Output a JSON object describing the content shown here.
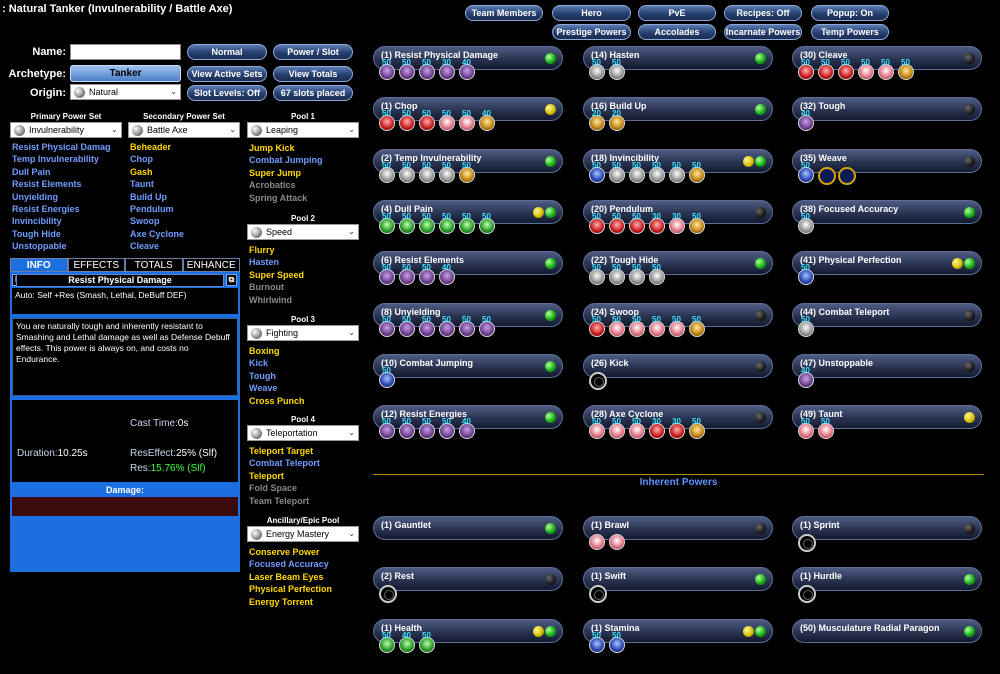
{
  "window_title": ": Natural Tanker (Invulnerability / Battle Axe)",
  "top_buttons": [
    "Team Members",
    "Hero",
    "PvE",
    "Recipes: Off",
    "Popup: On",
    "Prestige Powers",
    "Accolades",
    "Incarnate Powers",
    "Temp Powers"
  ],
  "form": {
    "name_label": "Name:",
    "name_value": "",
    "archetype_label": "Archetype:",
    "archetype_value": "Tanker",
    "origin_label": "Origin:",
    "origin_value": "Natural"
  },
  "side_buttons": [
    "Normal",
    "Power / Slot",
    "View Active Sets",
    "View Totals",
    "Slot Levels: Off",
    "67 slots placed"
  ],
  "powersets": {
    "primary": {
      "heading": "Primary Power Set",
      "selected": "Invulnerability",
      "powers": [
        {
          "n": "Resist  Physical Damag",
          "c": "blue"
        },
        {
          "n": "Temp Invulnerability",
          "c": "blue"
        },
        {
          "n": "Dull Pain",
          "c": "blue"
        },
        {
          "n": "Resist Elements",
          "c": "blue"
        },
        {
          "n": "Unyielding",
          "c": "blue"
        },
        {
          "n": "Resist Energies",
          "c": "blue"
        },
        {
          "n": "Invincibility",
          "c": "blue"
        },
        {
          "n": "Tough Hide",
          "c": "blue"
        },
        {
          "n": "Unstoppable",
          "c": "blue"
        }
      ]
    },
    "secondary": {
      "heading": "Secondary Power Set",
      "selected": "Battle Axe",
      "powers": [
        {
          "n": "Beheader",
          "c": "yel"
        },
        {
          "n": "Chop",
          "c": "blue"
        },
        {
          "n": "Gash",
          "c": "yel"
        },
        {
          "n": "Taunt",
          "c": "blue"
        },
        {
          "n": "Build Up",
          "c": "blue"
        },
        {
          "n": "Pendulum",
          "c": "blue"
        },
        {
          "n": "Swoop",
          "c": "blue"
        },
        {
          "n": "Axe Cyclone",
          "c": "blue"
        },
        {
          "n": "Cleave",
          "c": "blue"
        }
      ]
    }
  },
  "pools": [
    {
      "heading": "Pool 1",
      "selected": "Leaping",
      "powers": [
        {
          "n": "Jump Kick",
          "c": "yel"
        },
        {
          "n": "Combat Jumping",
          "c": "blue"
        },
        {
          "n": "Super Jump",
          "c": "yel"
        },
        {
          "n": "Acrobatics",
          "c": "gray"
        },
        {
          "n": "Spring Attack",
          "c": "gray"
        }
      ]
    },
    {
      "heading": "Pool 2",
      "selected": "Speed",
      "powers": [
        {
          "n": "Flurry",
          "c": "yel"
        },
        {
          "n": "Hasten",
          "c": "blue"
        },
        {
          "n": "Super Speed",
          "c": "yel"
        },
        {
          "n": "Burnout",
          "c": "gray"
        },
        {
          "n": "Whirlwind",
          "c": "gray"
        }
      ]
    },
    {
      "heading": "Pool 3",
      "selected": "Fighting",
      "powers": [
        {
          "n": "Boxing",
          "c": "yel"
        },
        {
          "n": "Kick",
          "c": "blue"
        },
        {
          "n": "Tough",
          "c": "blue"
        },
        {
          "n": "Weave",
          "c": "blue"
        },
        {
          "n": "Cross Punch",
          "c": "yel"
        }
      ]
    },
    {
      "heading": "Pool 4",
      "selected": "Teleportation",
      "powers": [
        {
          "n": "Teleport Target",
          "c": "yel"
        },
        {
          "n": "Combat Teleport",
          "c": "blue"
        },
        {
          "n": "Teleport",
          "c": "yel"
        },
        {
          "n": "Fold Space",
          "c": "gray"
        },
        {
          "n": "Team Teleport",
          "c": "gray"
        }
      ]
    },
    {
      "heading": "Ancillary/Epic Pool",
      "selected": "Energy Mastery",
      "powers": [
        {
          "n": "Conserve Power",
          "c": "yel"
        },
        {
          "n": "Focused Accuracy",
          "c": "blue"
        },
        {
          "n": "Laser Beam Eyes",
          "c": "yel"
        },
        {
          "n": "Physical Perfection",
          "c": "yel"
        },
        {
          "n": "Energy Torrent",
          "c": "yel"
        }
      ]
    }
  ],
  "info": {
    "tabs": [
      "INFO",
      "EFFECTS",
      "TOTALS",
      "ENHANCE"
    ],
    "f_btn": "F",
    "power_title": "Resist Physical Damage",
    "summary": "Auto: Self +Res (Smash, Lethal, DeBuff DEF)",
    "description": "You are naturally tough and inherently resistant to Smashing and Lethal damage as well as Defense Debuff effects. This power is always on, and costs no Endurance.",
    "cast_time_label": "Cast Time:",
    "cast_time": "0s",
    "duration_label": "Duration:",
    "duration": "10.25s",
    "reseffect_label": "ResEffect:",
    "reseffect": "25% (Slf)",
    "res_label": "Res:",
    "res": "15.76% (Slf)",
    "damage_label": "Damage:"
  },
  "inherent_heading": "Inherent Powers",
  "slots": [
    {
      "col": 0,
      "row": 0,
      "label": "(1) Resist Physical Damage",
      "led": [
        "g"
      ],
      "enh": [
        [
          "purple",
          "50"
        ],
        [
          "purple",
          "50"
        ],
        [
          "purple",
          "50"
        ],
        [
          "purple",
          "30"
        ],
        [
          "purple",
          "40"
        ]
      ]
    },
    {
      "col": 1,
      "row": 0,
      "label": "(14) Hasten",
      "led": [
        "g"
      ],
      "enh": [
        [
          "gray",
          "50"
        ],
        [
          "gray",
          "50"
        ]
      ]
    },
    {
      "col": 2,
      "row": 0,
      "label": "(30) Cleave",
      "led": [
        "k"
      ],
      "enh": [
        [
          "red",
          "50"
        ],
        [
          "red",
          "50"
        ],
        [
          "red",
          "50"
        ],
        [
          "pink",
          "50"
        ],
        [
          "pink",
          "50"
        ],
        [
          "gold",
          "50"
        ]
      ]
    },
    {
      "col": 0,
      "row": 1,
      "label": "(1) Chop",
      "led": [
        "y"
      ],
      "enh": [
        [
          "red",
          "50"
        ],
        [
          "red",
          "50"
        ],
        [
          "red",
          "50"
        ],
        [
          "pink",
          "50"
        ],
        [
          "pink",
          "50"
        ],
        [
          "gold",
          "40"
        ]
      ]
    },
    {
      "col": 1,
      "row": 1,
      "label": "(16) Build Up",
      "led": [
        "g"
      ],
      "enh": [
        [
          "gold",
          "20"
        ],
        [
          "gold",
          "20"
        ]
      ]
    },
    {
      "col": 2,
      "row": 1,
      "label": "(32) Tough",
      "led": [
        "k"
      ],
      "enh": [
        [
          "purple",
          "40"
        ]
      ]
    },
    {
      "col": 0,
      "row": 2,
      "label": "(2) Temp Invulnerability",
      "led": [
        "g"
      ],
      "enh": [
        [
          "gray",
          "50"
        ],
        [
          "gray",
          "50"
        ],
        [
          "gray",
          "50"
        ],
        [
          "gray",
          "50"
        ],
        [
          "gold",
          "50"
        ]
      ]
    },
    {
      "col": 1,
      "row": 2,
      "label": "(18) Invincibility",
      "led": [
        "y",
        "g"
      ],
      "enh": [
        [
          "blue",
          "50"
        ],
        [
          "gray",
          "50"
        ],
        [
          "gray",
          "50"
        ],
        [
          "gray",
          "50"
        ],
        [
          "gray",
          "50"
        ],
        [
          "gold",
          "50"
        ]
      ]
    },
    {
      "col": 2,
      "row": 2,
      "label": "(35) Weave",
      "led": [
        "k"
      ],
      "enh": [
        [
          "blue",
          "50"
        ],
        [
          "ring",
          ""
        ],
        [
          "ring",
          ""
        ]
      ]
    },
    {
      "col": 0,
      "row": 3,
      "label": "(4) Dull Pain",
      "led": [
        "y",
        "g"
      ],
      "enh": [
        [
          "green",
          "50"
        ],
        [
          "green",
          "50"
        ],
        [
          "green",
          "50"
        ],
        [
          "green",
          "50"
        ],
        [
          "green",
          "50"
        ],
        [
          "green",
          "50"
        ]
      ]
    },
    {
      "col": 1,
      "row": 3,
      "label": "(20) Pendulum",
      "led": [
        "k"
      ],
      "enh": [
        [
          "red",
          "50"
        ],
        [
          "red",
          "50"
        ],
        [
          "red",
          "50"
        ],
        [
          "red",
          "30"
        ],
        [
          "pink",
          "30"
        ],
        [
          "gold",
          "50"
        ]
      ]
    },
    {
      "col": 2,
      "row": 3,
      "label": "(38) Focused Accuracy",
      "led": [
        "g"
      ],
      "enh": [
        [
          "gray",
          "50"
        ]
      ]
    },
    {
      "col": 0,
      "row": 4,
      "label": "(6) Resist Elements",
      "led": [
        "g"
      ],
      "enh": [
        [
          "purple",
          "50"
        ],
        [
          "purple",
          "50"
        ],
        [
          "purple",
          "50"
        ],
        [
          "purple",
          "40"
        ]
      ]
    },
    {
      "col": 1,
      "row": 4,
      "label": "(22) Tough Hide",
      "led": [
        "g"
      ],
      "enh": [
        [
          "gray",
          "50"
        ],
        [
          "gray",
          "50"
        ],
        [
          "gray",
          "50"
        ],
        [
          "gray",
          "50"
        ]
      ]
    },
    {
      "col": 2,
      "row": 4,
      "label": "(41) Physical Perfection",
      "led": [
        "y",
        "g"
      ],
      "enh": [
        [
          "blue",
          "50"
        ]
      ]
    },
    {
      "col": 0,
      "row": 5,
      "label": "(8) Unyielding",
      "led": [
        "g"
      ],
      "enh": [
        [
          "purple",
          "50"
        ],
        [
          "purple",
          "50"
        ],
        [
          "purple",
          "50"
        ],
        [
          "purple",
          "50"
        ],
        [
          "purple",
          "50"
        ],
        [
          "purple",
          "50"
        ]
      ]
    },
    {
      "col": 1,
      "row": 5,
      "label": "(24) Swoop",
      "led": [
        "k"
      ],
      "enh": [
        [
          "red",
          "50"
        ],
        [
          "pink",
          "50"
        ],
        [
          "pink",
          "50"
        ],
        [
          "pink",
          "50"
        ],
        [
          "pink",
          "50"
        ],
        [
          "gold",
          "50"
        ]
      ]
    },
    {
      "col": 2,
      "row": 5,
      "label": "(44) Combat Teleport",
      "led": [
        "k"
      ],
      "enh": [
        [
          "gray",
          "50"
        ]
      ]
    },
    {
      "col": 0,
      "row": 6,
      "label": "(10) Combat Jumping",
      "led": [
        "g"
      ],
      "enh": [
        [
          "blue",
          "50"
        ]
      ]
    },
    {
      "col": 1,
      "row": 6,
      "label": "(26) Kick",
      "led": [
        "k"
      ],
      "enh": [
        [
          "empty",
          ""
        ]
      ]
    },
    {
      "col": 2,
      "row": 6,
      "label": "(47) Unstoppable",
      "led": [
        "k"
      ],
      "enh": [
        [
          "purple",
          "40"
        ]
      ]
    },
    {
      "col": 0,
      "row": 7,
      "label": "(12) Resist Energies",
      "led": [
        "g"
      ],
      "enh": [
        [
          "purple",
          "50"
        ],
        [
          "purple",
          "50"
        ],
        [
          "purple",
          "50"
        ],
        [
          "purple",
          "50"
        ],
        [
          "purple",
          "40"
        ]
      ]
    },
    {
      "col": 1,
      "row": 7,
      "label": "(28) Axe Cyclone",
      "led": [
        "k"
      ],
      "enh": [
        [
          "pink",
          "50"
        ],
        [
          "pink",
          "50"
        ],
        [
          "pink",
          "50"
        ],
        [
          "red",
          "30"
        ],
        [
          "red",
          "30"
        ],
        [
          "gold",
          "50"
        ]
      ]
    },
    {
      "col": 2,
      "row": 7,
      "label": "(49) Taunt",
      "led": [
        "y"
      ],
      "enh": [
        [
          "pink",
          "50"
        ],
        [
          "pink",
          "50"
        ]
      ]
    }
  ],
  "inherent_slots": [
    {
      "col": 0,
      "row": 0,
      "label": "(1) Gauntlet",
      "led": [
        "g"
      ],
      "enh": []
    },
    {
      "col": 1,
      "row": 0,
      "label": "(1) Brawl",
      "led": [
        "k"
      ],
      "enh": [
        [
          "pink",
          ""
        ],
        [
          "pink",
          ""
        ]
      ]
    },
    {
      "col": 2,
      "row": 0,
      "label": "(1) Sprint",
      "led": [
        "k"
      ],
      "enh": [
        [
          "empty",
          ""
        ]
      ]
    },
    {
      "col": 0,
      "row": 1,
      "label": "(2) Rest",
      "led": [
        "k"
      ],
      "enh": [
        [
          "empty",
          ""
        ]
      ]
    },
    {
      "col": 1,
      "row": 1,
      "label": "(1) Swift",
      "led": [
        "g"
      ],
      "enh": [
        [
          "empty",
          ""
        ]
      ]
    },
    {
      "col": 2,
      "row": 1,
      "label": "(1) Hurdle",
      "led": [
        "g"
      ],
      "enh": [
        [
          "empty",
          ""
        ]
      ]
    },
    {
      "col": 0,
      "row": 2,
      "label": "(1) Health",
      "led": [
        "y",
        "g"
      ],
      "enh": [
        [
          "green",
          "50"
        ],
        [
          "green",
          "40"
        ],
        [
          "green",
          "50"
        ]
      ]
    },
    {
      "col": 1,
      "row": 2,
      "label": "(1) Stamina",
      "led": [
        "y",
        "g"
      ],
      "enh": [
        [
          "blue",
          "50"
        ],
        [
          "blue",
          "50"
        ]
      ]
    },
    {
      "col": 2,
      "row": 2,
      "label": "(50) Musculature Radial Paragon",
      "led": [
        "g"
      ],
      "enh": []
    }
  ]
}
